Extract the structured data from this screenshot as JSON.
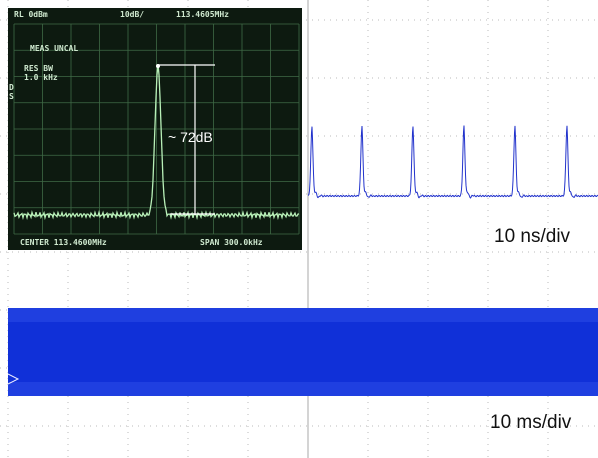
{
  "inset": {
    "top_left": "RL 0dBm",
    "top_middle": "10dB/",
    "top_right": "113.4605MHz",
    "status": "MEAS UNCAL",
    "res_bw_label": "RES BW",
    "res_bw_value": "1.0 kHz",
    "side_marks": [
      "D",
      "S"
    ],
    "annotation": "~ 72dB",
    "center": "CENTER 113.4600MHz",
    "span": "SPAN 300.0kHz"
  },
  "traces": {
    "upper_scale": "10 ns/div",
    "lower_scale": "10 ms/div"
  }
}
